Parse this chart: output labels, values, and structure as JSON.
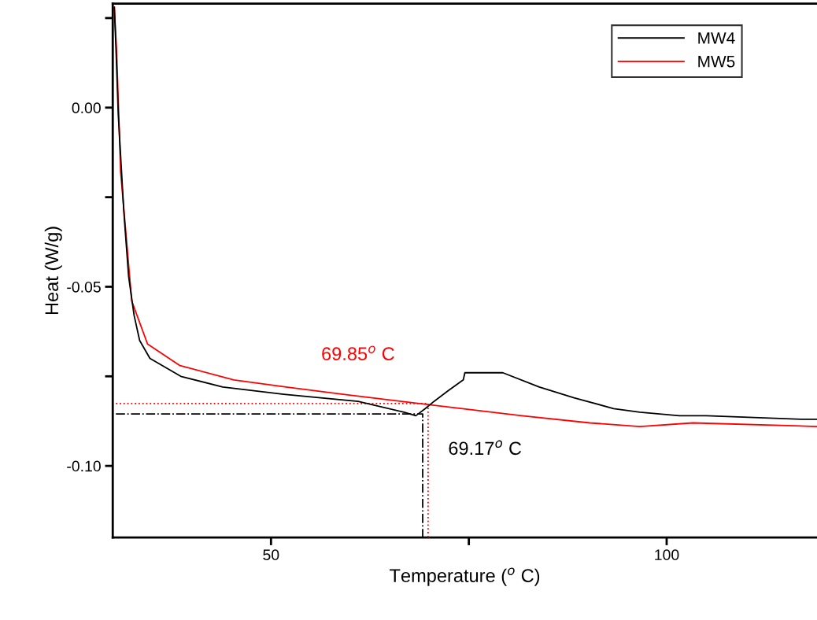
{
  "chart_data": {
    "type": "line",
    "xlabel": "Temperature ($^{o}$ C)",
    "ylabel": "Heat (W/g)",
    "xlim": [
      30,
      119
    ],
    "ylim": [
      -0.12,
      0.029
    ],
    "xticks": [
      50,
      {
        "value": 75,
        "label": null
      },
      100
    ],
    "yticks": [
      {
        "value": -0.1,
        "label": "-0.10"
      },
      {
        "value": -0.075,
        "label": null
      },
      {
        "value": -0.05,
        "label": "-0.05"
      },
      {
        "value": -0.025,
        "label": null
      },
      {
        "value": 0,
        "label": "0.00"
      },
      {
        "value": 0.025,
        "label": null
      }
    ],
    "grid": false,
    "legend": "top right",
    "line_style": "solid",
    "marker": "none",
    "series": [
      {
        "name": "MW4",
        "color": "#000000",
        "x": [
          30.2,
          30.4,
          30.7,
          31.4,
          32.0,
          32.7,
          33.4,
          34.7,
          38.6,
          43.9,
          51.6,
          61.0,
          66.8,
          68.3,
          69.5,
          70.6,
          72.4,
          74.3,
          74.5,
          76.6,
          79.3,
          83.9,
          88.3,
          93.3,
          96.6,
          101.6,
          105.0,
          117.2,
          119.0
        ],
        "values": [
          0.028,
          0.017,
          -0.002,
          -0.029,
          -0.047,
          -0.058,
          -0.065,
          -0.07,
          -0.075,
          -0.078,
          -0.08,
          -0.082,
          -0.085,
          -0.086,
          -0.084,
          -0.082,
          -0.079,
          -0.076,
          -0.074,
          -0.074,
          -0.074,
          -0.078,
          -0.081,
          -0.084,
          -0.085,
          -0.086,
          -0.086,
          -0.087,
          -0.087
        ]
      },
      {
        "name": "MW5",
        "color": "#ff0000",
        "x": [
          30.2,
          30.5,
          31.0,
          31.7,
          32.4,
          34.4,
          38.5,
          45.3,
          51.9,
          59.1,
          70.2,
          81.7,
          90.3,
          96.6,
          103.3,
          119.0
        ],
        "values": [
          0.028,
          0.015,
          -0.018,
          -0.036,
          -0.054,
          -0.066,
          -0.072,
          -0.076,
          -0.078,
          -0.08,
          -0.083,
          -0.086,
          -0.088,
          -0.089,
          -0.088,
          -0.089
        ]
      },
      {
        "color": "#000000",
        "line_style": "dashed",
        "x": [
          30.4,
          69.17,
          69.17
        ],
        "values": [
          -0.0855,
          -0.0855,
          -0.12
        ]
      },
      {
        "color": "#ff0000",
        "line_style": "dotted",
        "x": [
          30.4,
          69.85,
          69.85
        ],
        "values": [
          -0.0826,
          -0.0826,
          -0.12
        ]
      }
    ],
    "annotations": [
      {
        "text": "69.85$^{o}$ C",
        "x": 61,
        "y": -0.0826
      },
      {
        "text": "69.17$^{o}$ C",
        "x": 69.17,
        "y": -0.0855
      }
    ]
  }
}
